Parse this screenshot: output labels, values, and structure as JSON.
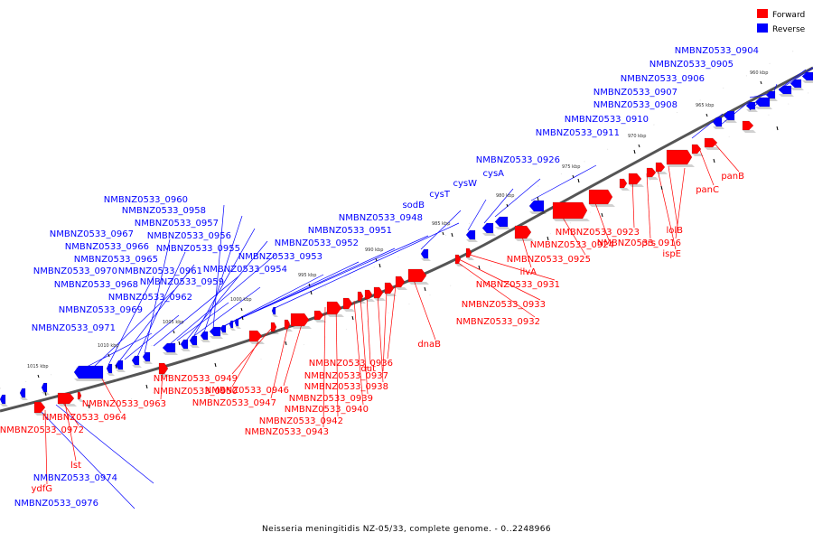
{
  "caption": "Neisseria meningitidis NZ-05/33, complete genome. - 0..2248966",
  "legend": {
    "forward_label": "Forward",
    "reverse_label": "Reverse",
    "forward_color": "#ff0000",
    "reverse_color": "#0000ff"
  },
  "tick_labels": [
    "960 kbp",
    "965 kbp",
    "970 kbp",
    "975 kbp",
    "980 kbp",
    "985 kbp",
    "990 kbp",
    "995 kbp",
    "1000 kbp",
    "1005 kbp",
    "1010 kbp",
    "1015 kbp"
  ],
  "reverse_gene_labels": [
    "NMBNZ0533_0904",
    "NMBNZ0533_0905",
    "NMBNZ0533_0906",
    "NMBNZ0533_0907",
    "NMBNZ0533_0908",
    "NMBNZ0533_0910",
    "NMBNZ0533_0911",
    "NMBNZ0533_0926",
    "cysA",
    "cysW",
    "cysT",
    "sodB",
    "NMBNZ0533_0948",
    "NMBNZ0533_0951",
    "NMBNZ0533_0952",
    "NMBNZ0533_0953",
    "NMBNZ0533_0954",
    "NMBNZ0533_0960",
    "NMBNZ0533_0958",
    "NMBNZ0533_0957",
    "NMBNZ0533_0956",
    "NMBNZ0533_0955",
    "NMBNZ0533_0967",
    "NMBNZ0533_0966",
    "NMBNZ0533_0965",
    "NMBNZ0533_0970",
    "NMBNZ0533_0961",
    "NMBNZ0533_0968",
    "NMBNZ0533_0959",
    "NMBNZ0533_0962",
    "NMBNZ0533_0969",
    "NMBNZ0533_0971",
    "NMBNZ0533_0974",
    "NMBNZ0533_0976"
  ],
  "forward_gene_labels": [
    "panB",
    "panC",
    "lolB",
    "NMBNZ0533_0916",
    "ispE",
    "prs",
    "NMBNZ0533_0923",
    "NMBNZ0533_0924",
    "NMBNZ0533_0925",
    "ilvA",
    "NMBNZ0533_0931",
    "NMBNZ0533_0933",
    "NMBNZ0533_0932",
    "dnaB",
    "NMBNZ0533_0936",
    "NMBNZ0533_0937",
    "NMBNZ0533_0938",
    "dut",
    "NMBNZ0533_0939",
    "NMBNZ0533_0940",
    "NMBNZ0533_0942",
    "NMBNZ0533_0943",
    "NMBNZ0533_0946",
    "NMBNZ0533_0947",
    "NMBNZ0533_0949",
    "NMBNZ0533_0950",
    "NMBNZ0533_0963",
    "NMBNZ0533_0964",
    "NMBNZ0533_0972",
    "lst",
    "ydfG"
  ]
}
